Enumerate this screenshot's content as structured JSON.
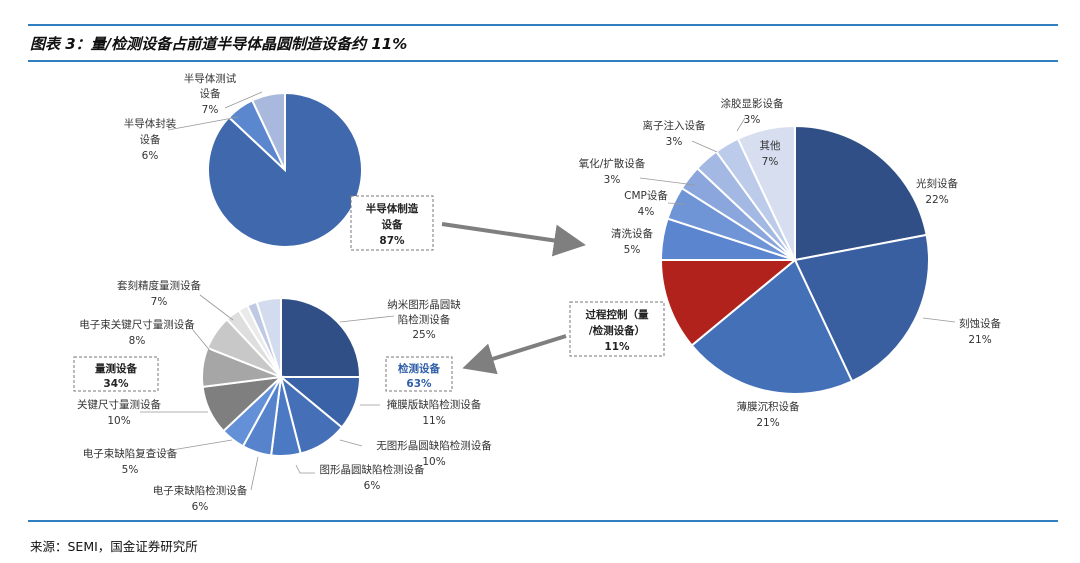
{
  "figure": {
    "title": "图表 3：量/检测设备占前道半导体晶圆制造设备约 11%",
    "source": "来源：SEMI，国金证券研究所"
  },
  "chart_data": [
    {
      "type": "pie",
      "title": "",
      "slices": [
        {
          "name": "半导体制造设备",
          "value": 87,
          "color": "#3f68ad"
        },
        {
          "name": "半导体封装设备",
          "value": 6,
          "color": "#5b87cf"
        },
        {
          "name": "半导体测试设备",
          "value": 7,
          "color": "#a9b9de"
        }
      ]
    },
    {
      "type": "pie",
      "title": "",
      "slices": [
        {
          "name": "光刻设备",
          "value": 22,
          "color": "#2f4f86"
        },
        {
          "name": "刻蚀设备",
          "value": 21,
          "color": "#3a5fa0"
        },
        {
          "name": "薄膜沉积设备",
          "value": 21,
          "color": "#4470b8"
        },
        {
          "name": "过程控制（量/检测设备）",
          "value": 11,
          "color": "#b2221c"
        },
        {
          "name": "清洗设备",
          "value": 5,
          "color": "#5b85cf"
        },
        {
          "name": "CMP设备",
          "value": 4,
          "color": "#7095d6"
        },
        {
          "name": "氧化/扩散设备",
          "value": 3,
          "color": "#8aa6dc"
        },
        {
          "name": "离子注入设备",
          "value": 3,
          "color": "#a3b8e3"
        },
        {
          "name": "涂胶显影设备",
          "value": 3,
          "color": "#bccbea"
        },
        {
          "name": "其他",
          "value": 7,
          "color": "#d6def0"
        }
      ]
    },
    {
      "type": "pie",
      "title": "",
      "groups": [
        {
          "name": "检测设备",
          "value": 63
        },
        {
          "name": "量测设备",
          "value": 34
        }
      ],
      "slices": [
        {
          "name": "纳米图形晶圆缺陷检测设备",
          "value": 25,
          "color": "#2f4f86"
        },
        {
          "name": "掩膜版缺陷检测设备",
          "value": 11,
          "color": "#3a62a6"
        },
        {
          "name": "无图形晶圆缺陷检测设备",
          "value": 10,
          "color": "#4570b8"
        },
        {
          "name": "图形晶圆缺陷检测设备",
          "value": 6,
          "color": "#4c79c3"
        },
        {
          "name": "电子束缺陷检测设备",
          "value": 6,
          "color": "#5683cc"
        },
        {
          "name": "电子束缺陷复查设备",
          "value": 5,
          "color": "#6390d6"
        },
        {
          "name": "关键尺寸量测设备",
          "value": 10,
          "color": "#7f7f7f"
        },
        {
          "name": "电子束关键尺寸量测设备",
          "value": 8,
          "color": "#a6a6a6"
        },
        {
          "name": "套刻精度量测设备",
          "value": 7,
          "color": "#c8c8c8"
        },
        {
          "name": "",
          "value": 3,
          "color": "#dedede"
        },
        {
          "name": "",
          "value": 2,
          "color": "#eaeaea"
        },
        {
          "name": "",
          "value": 2,
          "color": "#bfc9e3"
        },
        {
          "name": "",
          "value": 5,
          "color": "#d3dbee"
        }
      ]
    }
  ]
}
